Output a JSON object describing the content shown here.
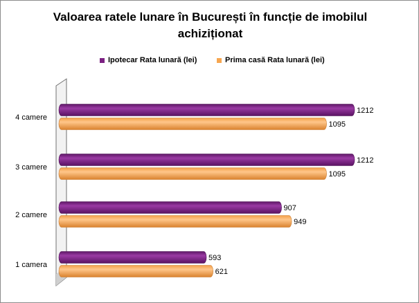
{
  "chart_data": {
    "type": "bar",
    "orientation": "horizontal",
    "title": "Valoarea ratele lunare în București în funcție de imobilul achiziționat",
    "categories": [
      "4 camere",
      "3 camere",
      "2 camere",
      "1 camera"
    ],
    "series": [
      {
        "name": "Ipotecar Rata lunară (lei)",
        "values": [
          1212,
          1212,
          907,
          593
        ],
        "color": "#7b2182"
      },
      {
        "name": "Prima casă Rata lunară (lei)",
        "values": [
          1095,
          1095,
          949,
          621
        ],
        "color": "#f6a650"
      }
    ],
    "xlim": [
      0,
      1212
    ],
    "grid": false,
    "legend_position": "top",
    "data_labels": true
  }
}
